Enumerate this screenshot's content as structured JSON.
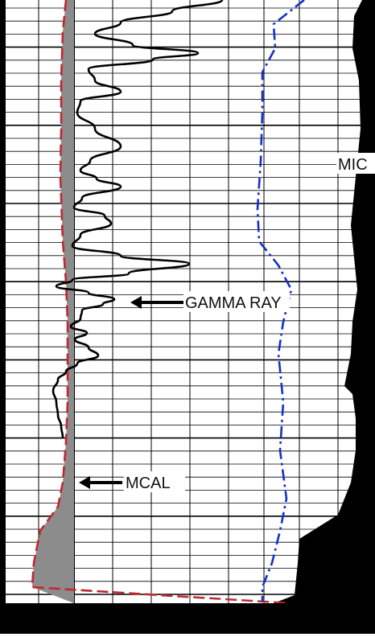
{
  "chart_data": {
    "type": "line",
    "title": "",
    "depth_units_shown": false,
    "grid": true,
    "annotations": [
      {
        "text": "GAMMA RAY",
        "points_to": "GAMMA RAY"
      },
      {
        "text": "MCAL",
        "points_to": "MCAL"
      },
      {
        "text": "MIC",
        "points_to": "MIC"
      }
    ],
    "series": [
      {
        "name": "GAMMA RAY",
        "style": "solid",
        "color": "#000000",
        "values": [
          {
            "depth": 0,
            "value": 276
          },
          {
            "depth": 14,
            "value": 214
          },
          {
            "depth": 28,
            "value": 150
          },
          {
            "depth": 42,
            "value": 118
          },
          {
            "depth": 56,
            "value": 165
          },
          {
            "depth": 66,
            "value": 246
          },
          {
            "depth": 74,
            "value": 190
          },
          {
            "depth": 86,
            "value": 110
          },
          {
            "depth": 100,
            "value": 118
          },
          {
            "depth": 114,
            "value": 150
          },
          {
            "depth": 126,
            "value": 100
          },
          {
            "depth": 140,
            "value": 96
          },
          {
            "depth": 160,
            "value": 118
          },
          {
            "depth": 182,
            "value": 150
          },
          {
            "depth": 200,
            "value": 112
          },
          {
            "depth": 212,
            "value": 100
          },
          {
            "depth": 222,
            "value": 120
          },
          {
            "depth": 232,
            "value": 150
          },
          {
            "depth": 246,
            "value": 102
          },
          {
            "depth": 258,
            "value": 92
          },
          {
            "depth": 268,
            "value": 130
          },
          {
            "depth": 278,
            "value": 138
          },
          {
            "depth": 292,
            "value": 100
          },
          {
            "depth": 306,
            "value": 90
          },
          {
            "depth": 318,
            "value": 150
          },
          {
            "depth": 328,
            "value": 235
          },
          {
            "depth": 340,
            "value": 160
          },
          {
            "depth": 348,
            "value": 90
          },
          {
            "depth": 356,
            "value": 70
          },
          {
            "depth": 364,
            "value": 110
          },
          {
            "depth": 372,
            "value": 142
          },
          {
            "depth": 378,
            "value": 128
          },
          {
            "depth": 386,
            "value": 102
          },
          {
            "depth": 396,
            "value": 100
          },
          {
            "depth": 406,
            "value": 88
          },
          {
            "depth": 414,
            "value": 108
          },
          {
            "depth": 422,
            "value": 93
          },
          {
            "depth": 432,
            "value": 110
          },
          {
            "depth": 442,
            "value": 122
          },
          {
            "depth": 452,
            "value": 96
          },
          {
            "depth": 462,
            "value": 82
          },
          {
            "depth": 472,
            "value": 72
          },
          {
            "depth": 486,
            "value": 66
          },
          {
            "depth": 500,
            "value": 70
          },
          {
            "depth": 516,
            "value": 72
          },
          {
            "depth": 530,
            "value": 76
          },
          {
            "depth": 544,
            "value": 78
          }
        ]
      },
      {
        "name": "MCAL",
        "style": "dashed",
        "color": "#c0282e",
        "values": [
          {
            "depth": 0,
            "value": 82
          },
          {
            "depth": 40,
            "value": 78
          },
          {
            "depth": 100,
            "value": 76
          },
          {
            "depth": 160,
            "value": 76
          },
          {
            "depth": 220,
            "value": 75
          },
          {
            "depth": 300,
            "value": 78
          },
          {
            "depth": 350,
            "value": 82
          },
          {
            "depth": 400,
            "value": 84
          },
          {
            "depth": 450,
            "value": 84
          },
          {
            "depth": 500,
            "value": 84
          },
          {
            "depth": 550,
            "value": 82
          },
          {
            "depth": 600,
            "value": 78
          },
          {
            "depth": 630,
            "value": 72
          },
          {
            "depth": 660,
            "value": 50
          },
          {
            "depth": 700,
            "value": 42
          },
          {
            "depth": 730,
            "value": 40
          },
          {
            "depth": 750,
            "value": 360
          }
        ]
      },
      {
        "name": "blue dash-dot curve",
        "style": "dash-dot",
        "color": "#1530c8",
        "values": [
          {
            "depth": 0,
            "value": 378
          },
          {
            "depth": 30,
            "value": 340
          },
          {
            "depth": 60,
            "value": 342
          },
          {
            "depth": 90,
            "value": 326
          },
          {
            "depth": 140,
            "value": 326
          },
          {
            "depth": 200,
            "value": 324
          },
          {
            "depth": 260,
            "value": 320
          },
          {
            "depth": 300,
            "value": 322
          },
          {
            "depth": 330,
            "value": 346
          },
          {
            "depth": 360,
            "value": 362
          },
          {
            "depth": 400,
            "value": 352
          },
          {
            "depth": 440,
            "value": 346
          },
          {
            "depth": 500,
            "value": 352
          },
          {
            "depth": 560,
            "value": 348
          },
          {
            "depth": 620,
            "value": 356
          },
          {
            "depth": 660,
            "value": 348
          },
          {
            "depth": 700,
            "value": 338
          },
          {
            "depth": 730,
            "value": 326
          },
          {
            "depth": 748,
            "value": 326
          }
        ]
      },
      {
        "name": "MIC",
        "style": "filled",
        "color": "#000000",
        "values": [
          {
            "depth": 0,
            "value": 450
          },
          {
            "depth": 20,
            "value": 440
          },
          {
            "depth": 60,
            "value": 438
          },
          {
            "depth": 100,
            "value": 446
          },
          {
            "depth": 160,
            "value": 448
          },
          {
            "depth": 200,
            "value": 444
          },
          {
            "depth": 240,
            "value": 440
          },
          {
            "depth": 280,
            "value": 436
          },
          {
            "depth": 320,
            "value": 440
          },
          {
            "depth": 360,
            "value": 444
          },
          {
            "depth": 400,
            "value": 438
          },
          {
            "depth": 440,
            "value": 436
          },
          {
            "depth": 480,
            "value": 428
          },
          {
            "depth": 490,
            "value": 438
          },
          {
            "depth": 520,
            "value": 442
          },
          {
            "depth": 560,
            "value": 442
          },
          {
            "depth": 600,
            "value": 436
          },
          {
            "depth": 640,
            "value": 420
          },
          {
            "depth": 670,
            "value": 372
          },
          {
            "depth": 700,
            "value": 370
          },
          {
            "depth": 740,
            "value": 366
          },
          {
            "depth": 750,
            "value": 340
          }
        ]
      }
    ],
    "shading": [
      {
        "name": "gray fill between MCAL and left track boundary",
        "color": "#8c8c8c"
      }
    ]
  }
}
